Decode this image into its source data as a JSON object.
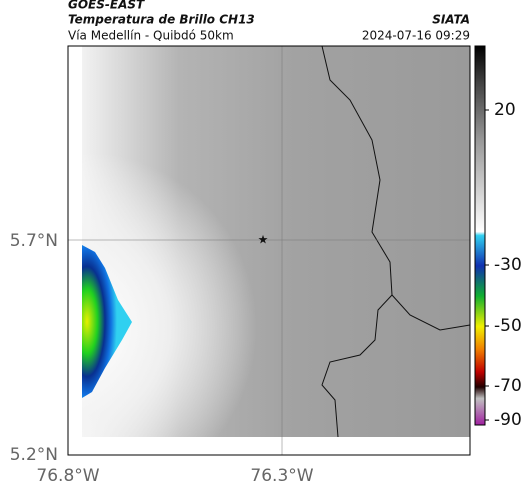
{
  "header": {
    "satellite": "GOES-EAST",
    "product": "Temperatura de Brillo CH13",
    "source": "SIATA",
    "route": "Vía Medellín - Quibdó 50km",
    "datetime": "2024-07-16 09:29"
  },
  "axes": {
    "lat_labels": [
      "5.7°N",
      "5.2°N"
    ],
    "lon_labels": [
      "76.8°W",
      "76.3°W"
    ]
  },
  "colorbar": {
    "labels": [
      "20",
      "-30",
      "-50",
      "-70",
      "-90"
    ]
  }
}
